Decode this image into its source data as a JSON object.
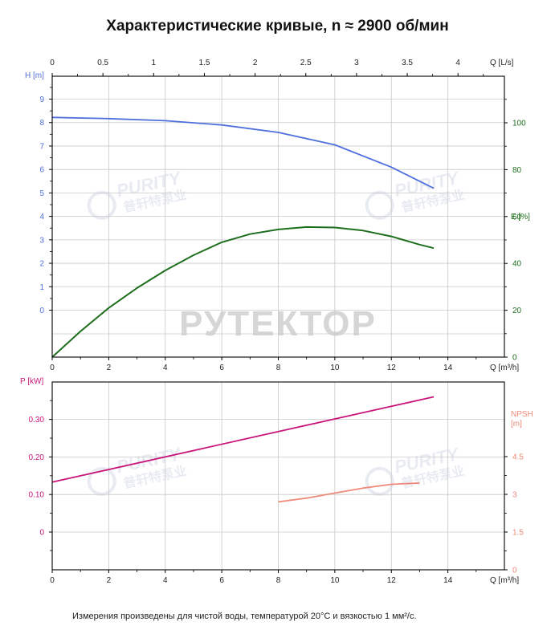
{
  "title": "Характеристические кривые, n ≈ 2900 об/мин",
  "footnote": "Измерения произведены для чистой воды, температурой 20°С и вязкостью 1 мм²/с.",
  "watermarks": {
    "main": "РУТЕКТОР",
    "logo": "PURITY",
    "logo_sub": "普轩特泵业"
  },
  "colors": {
    "head": "#4f6fdc",
    "efficiency": "#1e6e1e",
    "power": "#c8167a",
    "npsh": "#ef8a7a",
    "axis": "#000000",
    "grid": "#c8c8c8"
  },
  "chart_data": [
    {
      "type": "line",
      "title": "",
      "xlabel": "Q [m³/h]",
      "x2label": "Q [L/s]",
      "xlim": [
        0,
        16
      ],
      "x_ticks": [
        "0",
        "2",
        "4",
        "6",
        "8",
        "10",
        "12",
        "14"
      ],
      "x2_ticks": [
        "0",
        "0.5",
        "1",
        "1.5",
        "2",
        "2.5",
        "3",
        "3.5",
        "4"
      ],
      "ylabel": "H [m]",
      "y_ticks": [
        "0",
        "1",
        "2",
        "3",
        "4",
        "5",
        "6",
        "7",
        "8",
        "9"
      ],
      "y2label": "E [%]",
      "y2_ticks": [
        "0",
        "20",
        "40",
        "60",
        "80",
        "100"
      ],
      "grid": true,
      "series": [
        {
          "name": "H [m]",
          "axis": "left",
          "x": [
            0,
            2,
            4,
            6,
            8,
            10,
            12,
            13.5
          ],
          "y": [
            8.22,
            8.17,
            8.08,
            7.9,
            7.58,
            7.05,
            6.1,
            5.2
          ]
        },
        {
          "name": "E [%]",
          "axis": "right",
          "x": [
            0,
            1,
            2,
            3,
            4,
            5,
            6,
            7,
            8,
            9,
            10,
            11,
            12,
            13,
            13.5
          ],
          "y": [
            0,
            11,
            21,
            29.5,
            37,
            43.5,
            49,
            52.5,
            54.5,
            55.5,
            55.3,
            54,
            51.5,
            48,
            46.5
          ]
        }
      ]
    },
    {
      "type": "line",
      "title": "",
      "xlabel": "Q [m³/h]",
      "xlim": [
        0,
        16
      ],
      "x_ticks": [
        "0",
        "2",
        "4",
        "6",
        "8",
        "10",
        "12",
        "14"
      ],
      "ylabel": "P [kW]",
      "y_ticks": [
        "0",
        "0.10",
        "0.20",
        "0.30"
      ],
      "y2label": "NPSH [m]",
      "y2_ticks": [
        "0",
        "1.5",
        "3",
        "4.5"
      ],
      "grid": true,
      "series": [
        {
          "name": "P [kW]",
          "axis": "left",
          "x": [
            0,
            13.5
          ],
          "y": [
            0.133,
            0.36
          ]
        },
        {
          "name": "NPSH [m]",
          "axis": "right",
          "x": [
            8,
            9,
            10,
            11,
            12,
            13
          ],
          "y": [
            2.7,
            2.85,
            3.05,
            3.25,
            3.4,
            3.45
          ]
        }
      ]
    }
  ]
}
